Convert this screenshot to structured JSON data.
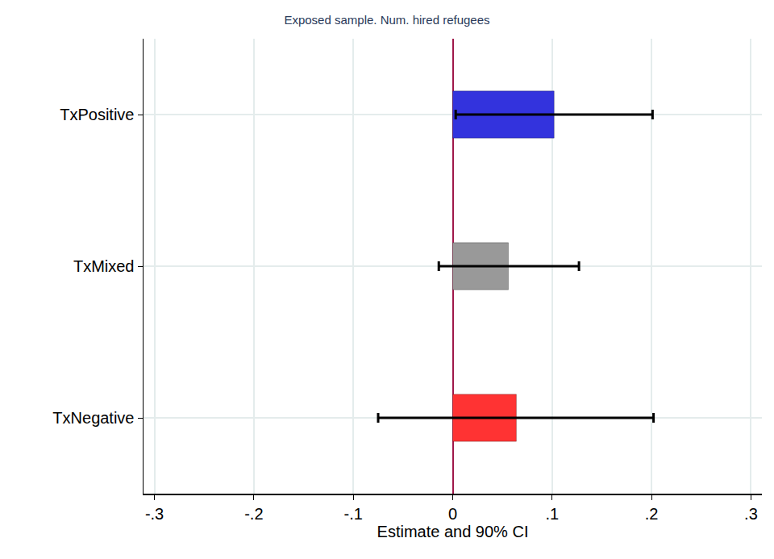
{
  "chart_data": {
    "type": "bar",
    "title": "Exposed sample. Num. hired refugees",
    "x_label": "Estimate and 90% CI",
    "orientation": "horizontal",
    "categories": [
      "TxPositive",
      "TxMixed",
      "TxNegative"
    ],
    "values": [
      0.102,
      0.056,
      0.064
    ],
    "ci_low": [
      0.003,
      -0.014,
      -0.075
    ],
    "ci_high": [
      0.201,
      0.127,
      0.202
    ],
    "colors": [
      "#3333dd",
      "#999999",
      "#ff3333"
    ],
    "xlim": [
      -0.311,
      0.311
    ],
    "xticks": [
      {
        "value": -0.3,
        "label": "-.3"
      },
      {
        "value": -0.2,
        "label": "-.2"
      },
      {
        "value": -0.1,
        "label": "-.1"
      },
      0,
      {
        "value": 0.1,
        "label": ".1"
      },
      {
        "value": 0.2,
        "label": ".2"
      },
      {
        "value": 0.3,
        "label": ".3"
      }
    ],
    "grid": true
  }
}
